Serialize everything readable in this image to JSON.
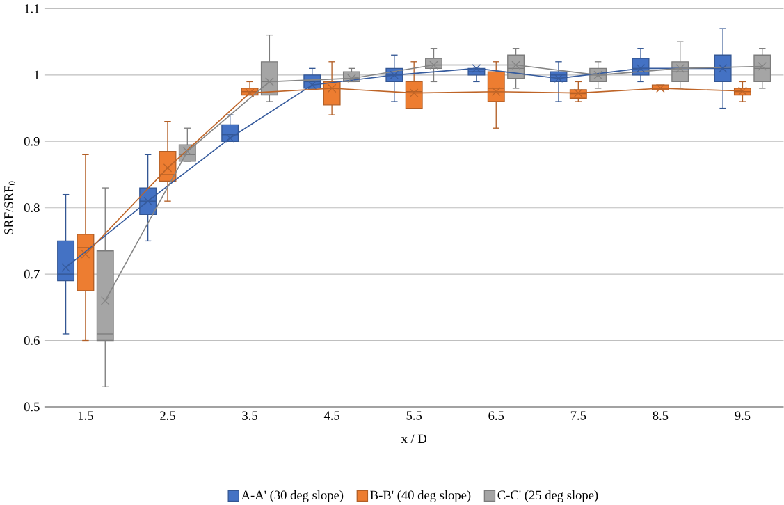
{
  "chart_data": {
    "type": "box",
    "xlabel": "x / D",
    "ylabel": "SRF/SRF$_{0}$",
    "categories": [
      "1.5",
      "2.5",
      "3.5",
      "4.5",
      "5.5",
      "6.5",
      "7.5",
      "8.5",
      "9.5"
    ],
    "ylim": [
      0.5,
      1.1
    ],
    "yticks": [
      0.5,
      0.6,
      0.7,
      0.8,
      0.9,
      1,
      1.1
    ],
    "grid": "y",
    "legend": "bottom",
    "series": [
      {
        "name": "A-A' (30 deg slope)",
        "color": "#4472c4",
        "boxes": [
          {
            "low": 0.61,
            "q1": 0.69,
            "median": 0.7,
            "q3": 0.75,
            "high": 0.82
          },
          {
            "low": 0.75,
            "q1": 0.79,
            "median": 0.81,
            "q3": 0.83,
            "high": 0.88
          },
          {
            "low": 0.9,
            "q1": 0.9,
            "median": 0.91,
            "q3": 0.925,
            "high": 0.94
          },
          {
            "low": 0.98,
            "q1": 0.98,
            "median": 0.99,
            "q3": 1.0,
            "high": 1.01
          },
          {
            "low": 0.96,
            "q1": 0.99,
            "median": 1.0,
            "q3": 1.01,
            "high": 1.03
          },
          {
            "low": 0.99,
            "q1": 1.0,
            "median": 1.005,
            "q3": 1.01,
            "high": 1.01
          },
          {
            "low": 0.96,
            "q1": 0.99,
            "median": 1.0,
            "q3": 1.005,
            "high": 1.02
          },
          {
            "low": 0.99,
            "q1": 1.0,
            "median": 1.01,
            "q3": 1.025,
            "high": 1.04
          },
          {
            "low": 0.95,
            "q1": 0.99,
            "median": 1.01,
            "q3": 1.03,
            "high": 1.07
          }
        ]
      },
      {
        "name": "B-B' (40 deg slope)",
        "color": "#ed7d31",
        "boxes": [
          {
            "low": 0.6,
            "q1": 0.675,
            "median": 0.74,
            "q3": 0.76,
            "high": 0.88
          },
          {
            "low": 0.81,
            "q1": 0.84,
            "median": 0.85,
            "q3": 0.885,
            "high": 0.93
          },
          {
            "low": 0.97,
            "q1": 0.97,
            "median": 0.975,
            "q3": 0.98,
            "high": 0.99
          },
          {
            "low": 0.94,
            "q1": 0.955,
            "median": 0.98,
            "q3": 0.99,
            "high": 1.02
          },
          {
            "low": 0.95,
            "q1": 0.95,
            "median": 0.975,
            "q3": 0.99,
            "high": 1.02
          },
          {
            "low": 0.92,
            "q1": 0.96,
            "median": 0.98,
            "q3": 1.005,
            "high": 1.02
          },
          {
            "low": 0.96,
            "q1": 0.965,
            "median": 0.972,
            "q3": 0.978,
            "high": 0.99
          },
          {
            "low": 0.978,
            "q1": 0.978,
            "median": 0.98,
            "q3": 0.985,
            "high": 0.985
          },
          {
            "low": 0.96,
            "q1": 0.97,
            "median": 0.975,
            "q3": 0.98,
            "high": 0.99
          }
        ]
      },
      {
        "name": "C-C' (25 deg slope)",
        "color": "#a5a5a5",
        "boxes": [
          {
            "low": 0.53,
            "q1": 0.6,
            "median": 0.61,
            "q3": 0.735,
            "high": 0.83
          },
          {
            "low": 0.87,
            "q1": 0.87,
            "median": 0.88,
            "q3": 0.895,
            "high": 0.92
          },
          {
            "low": 0.96,
            "q1": 0.97,
            "median": 0.99,
            "q3": 1.02,
            "high": 1.06
          },
          {
            "low": 0.99,
            "q1": 0.99,
            "median": 0.995,
            "q3": 1.005,
            "high": 1.01
          },
          {
            "low": 0.99,
            "q1": 1.01,
            "median": 1.015,
            "q3": 1.025,
            "high": 1.04
          },
          {
            "low": 0.98,
            "q1": 0.995,
            "median": 1.01,
            "q3": 1.03,
            "high": 1.04
          },
          {
            "low": 0.98,
            "q1": 0.99,
            "median": 1.0,
            "q3": 1.01,
            "high": 1.02
          },
          {
            "low": 0.98,
            "q1": 0.99,
            "median": 1.005,
            "q3": 1.02,
            "high": 1.05
          },
          {
            "low": 0.98,
            "q1": 0.99,
            "median": 1.01,
            "q3": 1.03,
            "high": 1.04
          }
        ]
      },
      {
        "type": "line",
        "marker": "cross",
        "color": "#365b9d",
        "values": [
          0.71,
          0.81,
          0.905,
          0.985,
          1.0,
          1.01,
          0.995,
          1.01,
          1.01
        ]
      },
      {
        "type": "line",
        "marker": "cross",
        "color": "#be6427",
        "values": [
          0.73,
          0.86,
          0.973,
          0.98,
          0.973,
          0.975,
          0.973,
          0.98,
          0.976
        ]
      },
      {
        "type": "line",
        "marker": "cross",
        "color": "#848484",
        "values": [
          0.66,
          0.885,
          0.99,
          0.995,
          1.015,
          1.015,
          1.0,
          1.01,
          1.013
        ]
      }
    ]
  }
}
